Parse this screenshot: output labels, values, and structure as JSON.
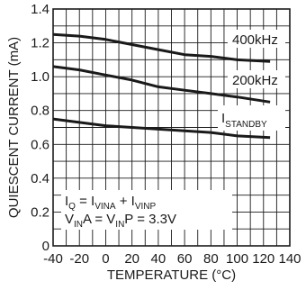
{
  "chart_data": {
    "type": "line",
    "xlabel": "TEMPERATURE (°C)",
    "ylabel": "QUIESCENT CURRENT (mA)",
    "xlim": [
      -40,
      140
    ],
    "ylim": [
      0,
      1.4
    ],
    "grid": true,
    "x_ticks": [
      "-40",
      "-20",
      "0",
      "20",
      "40",
      "60",
      "80",
      "100",
      "120",
      "140"
    ],
    "y_ticks": [
      "0",
      "0.2",
      "0.4",
      "0.6",
      "0.8",
      "1.0",
      "1.2",
      "1.4"
    ],
    "series": [
      {
        "name": "400kHz",
        "x": [
          -40,
          -20,
          0,
          20,
          40,
          60,
          80,
          100,
          125
        ],
        "y": [
          1.25,
          1.24,
          1.22,
          1.19,
          1.16,
          1.13,
          1.12,
          1.1,
          1.09
        ]
      },
      {
        "name": "200kHz",
        "x": [
          -40,
          -20,
          0,
          20,
          40,
          60,
          80,
          100,
          125
        ],
        "y": [
          1.06,
          1.04,
          1.01,
          0.98,
          0.94,
          0.92,
          0.9,
          0.88,
          0.85
        ]
      },
      {
        "name": "STANDBY",
        "x": [
          -40,
          -20,
          0,
          20,
          40,
          60,
          80,
          100,
          125
        ],
        "y": [
          0.75,
          0.73,
          0.71,
          0.7,
          0.69,
          0.68,
          0.67,
          0.65,
          0.64
        ]
      }
    ],
    "annotations": {
      "label_400": "400kHz",
      "label_200": "200kHz",
      "standby_main": "I",
      "standby_sub": "STANDBY",
      "eq1": {
        "i": "I",
        "q": "Q",
        "eq": " = I",
        "vina": "VINA",
        "plus": " + I",
        "vinp": "VINP"
      },
      "eq2": {
        "v1": "V",
        "in1": "IN",
        "a": "A = V",
        "in2": "IN",
        "p": "P = 3.3V"
      }
    }
  }
}
